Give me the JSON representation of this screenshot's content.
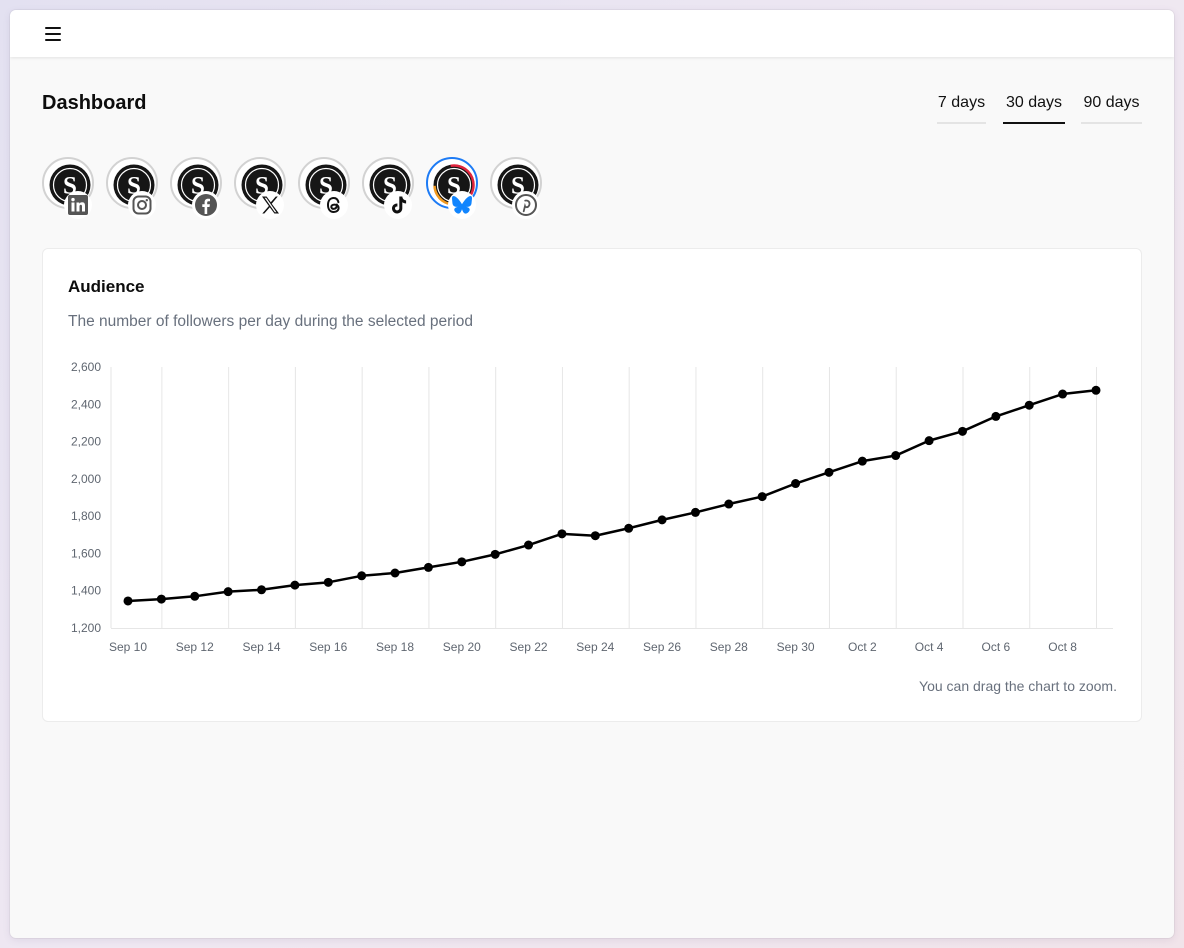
{
  "header": {
    "menu_label": "Menu"
  },
  "page": {
    "title": "Dashboard"
  },
  "period_tabs": [
    {
      "label": "7 days",
      "active": false
    },
    {
      "label": "30 days",
      "active": true
    },
    {
      "label": "90 days",
      "active": false
    }
  ],
  "accounts": [
    {
      "network": "linkedin",
      "icon": "linkedin-icon",
      "selected": false
    },
    {
      "network": "instagram",
      "icon": "instagram-icon",
      "selected": false
    },
    {
      "network": "facebook",
      "icon": "facebook-icon",
      "selected": false
    },
    {
      "network": "x",
      "icon": "x-icon",
      "selected": false
    },
    {
      "network": "threads",
      "icon": "threads-icon",
      "selected": false
    },
    {
      "network": "tiktok",
      "icon": "tiktok-icon",
      "selected": false
    },
    {
      "network": "bluesky",
      "icon": "bluesky-icon",
      "selected": true
    },
    {
      "network": "pinterest",
      "icon": "pinterest-icon",
      "selected": false
    }
  ],
  "colors": {
    "selected_ring": "#1d7bf5",
    "bluesky": "#1185fe",
    "line": "#000000"
  },
  "audience": {
    "title": "Audience",
    "subtitle": "The number of followers per day during the selected period",
    "note": "You can drag the chart to zoom."
  },
  "chart_data": {
    "type": "line",
    "title": "Audience",
    "xlabel": "",
    "ylabel": "",
    "ylim": [
      1200,
      2600
    ],
    "yticks": [
      1200,
      1400,
      1600,
      1800,
      2000,
      2200,
      2400,
      2600
    ],
    "ytick_labels": [
      "1,200",
      "1,400",
      "1,600",
      "1,800",
      "2,000",
      "2,200",
      "2,400",
      "2,600"
    ],
    "xtick_labels": [
      "Sep 10",
      "Sep 12",
      "Sep 14",
      "Sep 16",
      "Sep 18",
      "Sep 20",
      "Sep 22",
      "Sep 24",
      "Sep 26",
      "Sep 28",
      "Sep 30",
      "Oct 2",
      "Oct 4",
      "Oct 6",
      "Oct 8"
    ],
    "x": [
      "Sep 10",
      "Sep 11",
      "Sep 12",
      "Sep 13",
      "Sep 14",
      "Sep 15",
      "Sep 16",
      "Sep 17",
      "Sep 18",
      "Sep 19",
      "Sep 20",
      "Sep 21",
      "Sep 22",
      "Sep 23",
      "Sep 24",
      "Sep 25",
      "Sep 26",
      "Sep 27",
      "Sep 28",
      "Sep 29",
      "Sep 30",
      "Oct 1",
      "Oct 2",
      "Oct 3",
      "Oct 4",
      "Oct 5",
      "Oct 6",
      "Oct 7",
      "Oct 8",
      "Oct 9"
    ],
    "series": [
      {
        "values": [
          1345,
          1355,
          1370,
          1395,
          1405,
          1430,
          1445,
          1480,
          1495,
          1525,
          1555,
          1595,
          1645,
          1705,
          1695,
          1735,
          1780,
          1820,
          1865,
          1905,
          1975,
          2035,
          2095,
          2125,
          2205,
          2255,
          2335,
          2395,
          2455,
          2475
        ]
      }
    ],
    "grid": {
      "vertical": true,
      "horizontal": false
    },
    "legend": "none"
  }
}
